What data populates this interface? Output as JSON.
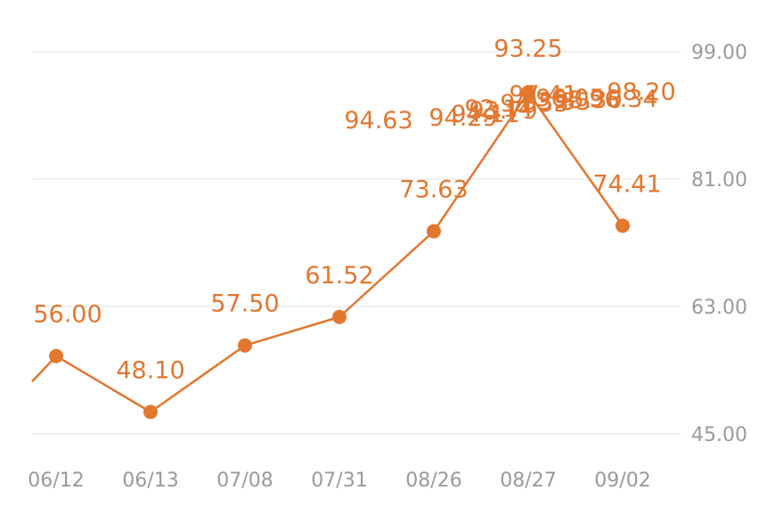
{
  "chart_data": {
    "type": "line",
    "categories": [
      "06/12",
      "06/13",
      "07/08",
      "07/31",
      "08/26",
      "08/27",
      "09/02"
    ],
    "series": [
      {
        "color": "#e2772f",
        "values": [
          56.0,
          48.1,
          57.5,
          61.52,
          73.63,
          93.25,
          74.41
        ]
      }
    ],
    "overlapping_labels": [
      "94.63",
      "94.29",
      "94.11",
      "93.79",
      "93.53",
      "93.55",
      "98.20",
      "96.05",
      "96.34",
      "92.14",
      "97.41",
      "95.30"
    ],
    "y_ticks": [
      "45.00",
      "63.00",
      "81.00",
      "99.00"
    ],
    "ylim": [
      45,
      99
    ],
    "y_axis_position": "right",
    "grid": true,
    "accent_color": "#e2772f"
  }
}
